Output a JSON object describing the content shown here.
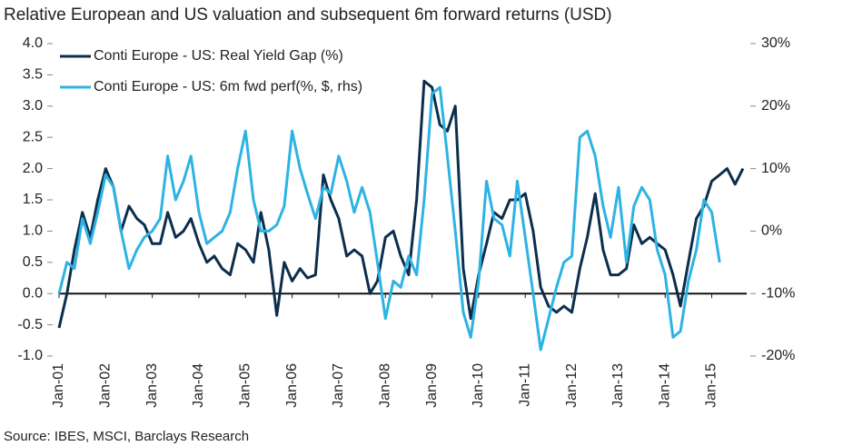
{
  "chart_data": {
    "type": "line",
    "title": "Relative European and US valuation and subsequent 6m forward returns (USD)",
    "source": "Source: IBES, MSCI, Barclays Research",
    "x": [
      2001,
      2001.17,
      2001.33,
      2001.5,
      2001.67,
      2001.83,
      2002,
      2002.17,
      2002.33,
      2002.5,
      2002.67,
      2002.83,
      2003,
      2003.17,
      2003.33,
      2003.5,
      2003.67,
      2003.83,
      2004,
      2004.17,
      2004.33,
      2004.5,
      2004.67,
      2004.83,
      2005,
      2005.17,
      2005.33,
      2005.5,
      2005.67,
      2005.83,
      2006,
      2006.17,
      2006.33,
      2006.5,
      2006.67,
      2006.83,
      2007,
      2007.17,
      2007.33,
      2007.5,
      2007.67,
      2007.83,
      2008,
      2008.17,
      2008.33,
      2008.5,
      2008.67,
      2008.83,
      2009,
      2009.17,
      2009.33,
      2009.5,
      2009.67,
      2009.83,
      2010,
      2010.17,
      2010.33,
      2010.5,
      2010.67,
      2010.83,
      2011,
      2011.17,
      2011.33,
      2011.5,
      2011.67,
      2011.83,
      2012,
      2012.17,
      2012.33,
      2012.5,
      2012.67,
      2012.83,
      2013,
      2013.17,
      2013.33,
      2013.5,
      2013.67,
      2013.83,
      2014,
      2014.17,
      2014.33,
      2014.5,
      2014.67,
      2014.83,
      2015,
      2015.17,
      2015.33,
      2015.5,
      2015.67
    ],
    "series": [
      {
        "name": "Conti Europe - US: Real Yield Gap (%)",
        "color": "#0c2e4c",
        "values": [
          -0.55,
          0.0,
          0.7,
          1.3,
          0.9,
          1.5,
          2.0,
          1.7,
          1.0,
          1.4,
          1.2,
          1.1,
          0.8,
          0.8,
          1.3,
          0.9,
          1.0,
          1.2,
          0.8,
          0.5,
          0.6,
          0.4,
          0.3,
          0.8,
          0.7,
          0.5,
          1.3,
          0.7,
          -0.35,
          0.5,
          0.2,
          0.4,
          0.25,
          0.3,
          1.9,
          1.5,
          1.2,
          0.6,
          0.7,
          0.6,
          0.0,
          0.2,
          0.9,
          1.0,
          0.6,
          0.3,
          1.5,
          3.4,
          3.3,
          2.7,
          2.6,
          3.0,
          0.4,
          -0.4,
          0.3,
          0.8,
          1.3,
          1.2,
          1.5,
          1.5,
          1.6,
          1.0,
          0.1,
          -0.2,
          -0.3,
          -0.2,
          -0.3,
          0.4,
          0.9,
          1.6,
          0.7,
          0.3,
          0.3,
          0.4,
          1.1,
          0.8,
          0.9,
          0.8,
          0.7,
          0.3,
          -0.2,
          0.5,
          1.2,
          1.4,
          1.8,
          1.9,
          2.0,
          1.75,
          2.0
        ]
      },
      {
        "name": "Conti Europe - US: 6m fwd perf(%, $, rhs)",
        "color": "#2db3e3",
        "axis": "y2",
        "values": [
          -10,
          -5,
          -6,
          2,
          -2,
          3,
          9,
          7,
          0,
          -6,
          -3,
          -1,
          0,
          2,
          12,
          5,
          8,
          12,
          3,
          -2,
          -1,
          0,
          3,
          10,
          16,
          5,
          0,
          0,
          1,
          4,
          16,
          10,
          6,
          2,
          7,
          6,
          12,
          8,
          3,
          7,
          3,
          -5,
          -14,
          -8,
          -9,
          -4,
          -7,
          5,
          22,
          23,
          12,
          0,
          -13,
          -17,
          -8,
          8,
          2,
          1,
          -4,
          8,
          -1,
          -10,
          -19,
          -14,
          -9,
          -5,
          -4,
          15,
          16,
          12,
          4,
          -1,
          7,
          -5,
          4,
          7,
          5,
          -3,
          -7,
          -17,
          -16,
          -8,
          -3,
          5,
          3,
          -5,
          null,
          null,
          null
        ]
      }
    ],
    "xlim": [
      2001,
      2015.75
    ],
    "xticks": [
      {
        "value": 2001,
        "label": "Jan-01"
      },
      {
        "value": 2002,
        "label": "Jan-02"
      },
      {
        "value": 2003,
        "label": "Jan-03"
      },
      {
        "value": 2004,
        "label": "Jan-04"
      },
      {
        "value": 2005,
        "label": "Jan-05"
      },
      {
        "value": 2006,
        "label": "Jan-06"
      },
      {
        "value": 2007,
        "label": "Jan-07"
      },
      {
        "value": 2008,
        "label": "Jan-08"
      },
      {
        "value": 2009,
        "label": "Jan-09"
      },
      {
        "value": 2010,
        "label": "Jan-10"
      },
      {
        "value": 2011,
        "label": "Jan-11"
      },
      {
        "value": 2012,
        "label": "Jan-12"
      },
      {
        "value": 2013,
        "label": "Jan-13"
      },
      {
        "value": 2014,
        "label": "Jan-14"
      },
      {
        "value": 2015,
        "label": "Jan-15"
      }
    ],
    "ylim": [
      -1,
      4
    ],
    "yticks": [
      {
        "value": 4,
        "label": "4.0"
      },
      3.5,
      {
        "value": 3,
        "label": "3.0"
      },
      2.5,
      {
        "value": 2,
        "label": "2.0"
      },
      1.5,
      {
        "value": 1,
        "label": "1.0"
      },
      0.5,
      {
        "value": 0,
        "label": "0.0"
      },
      -0.5,
      {
        "value": -1,
        "label": "-1.0"
      }
    ],
    "y2lim": [
      -20,
      30
    ],
    "y2ticks": [
      {
        "value": 30,
        "label": "30%"
      },
      {
        "value": 20,
        "label": "20%"
      },
      {
        "value": 10,
        "label": "10%"
      },
      {
        "value": 0,
        "label": "0%"
      },
      {
        "value": -10,
        "label": "-10%"
      },
      {
        "value": -20,
        "label": "-20%"
      }
    ],
    "zero_line": 0
  }
}
